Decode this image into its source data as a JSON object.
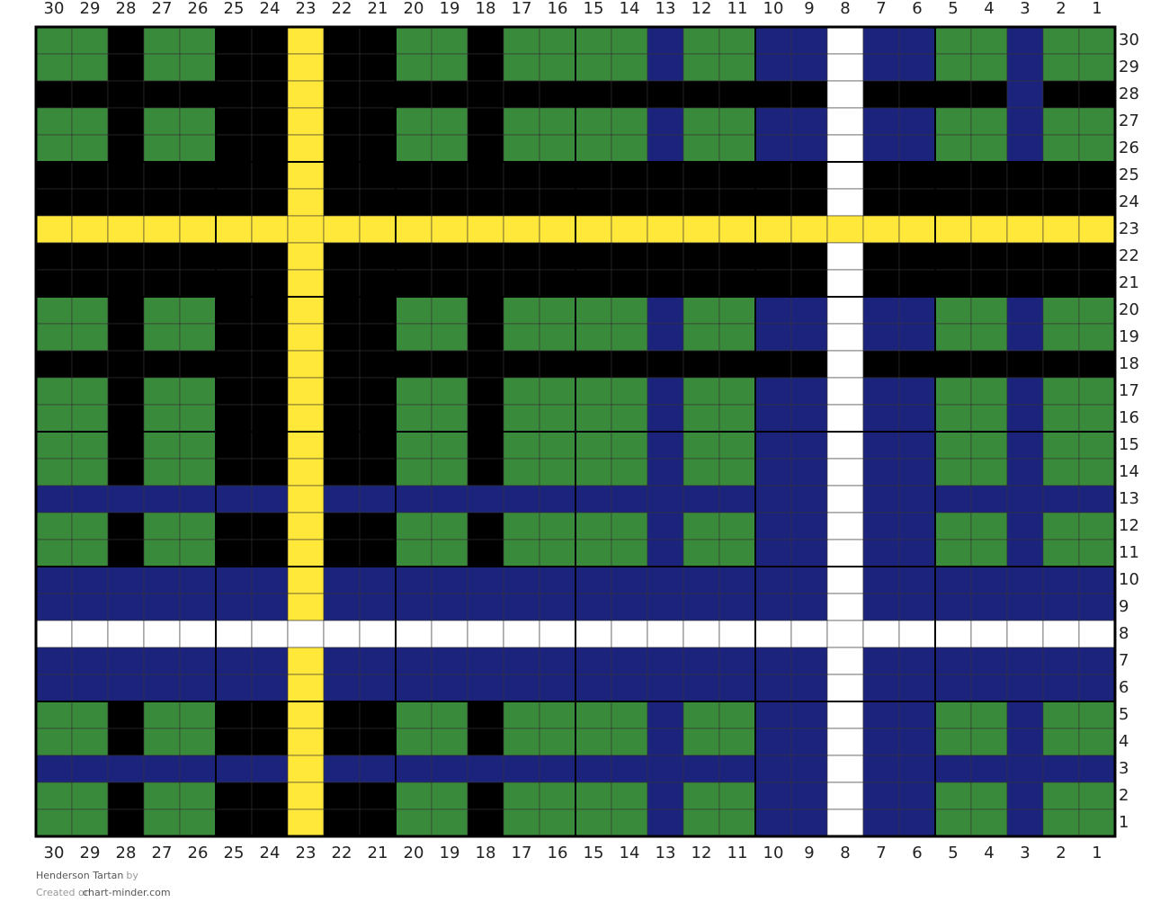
{
  "pattern": {
    "title": "Henderson Tartan",
    "by": "by",
    "created": "Created on",
    "site": "chart-minder.com",
    "palette": {
      "G": "#3a8a3c",
      "K": "#000000",
      "Y": "#ffe83a",
      "B": "#1c237c",
      "W": "#ffffff"
    },
    "columns": [
      30,
      29,
      28,
      27,
      26,
      25,
      24,
      23,
      22,
      21,
      20,
      19,
      18,
      17,
      16,
      15,
      14,
      13,
      12,
      11,
      10,
      9,
      8,
      7,
      6,
      5,
      4,
      3,
      2,
      1
    ],
    "rows": [
      {
        "label": 30,
        "cells": "GGKGGKKYKKGGKGGGGBGGBBWBBGGBGG"
      },
      {
        "label": 29,
        "cells": "GGKGGKKYKKGGKGGGGBGGBBWBBGGBGG"
      },
      {
        "label": 28,
        "cells": "KKKKKKKYKKKKKKKKKKKKKKWKKKKBKK"
      },
      {
        "label": 27,
        "cells": "GGKGGKKYKKGGKGGGGBGGBBWBBGGBGG"
      },
      {
        "label": 26,
        "cells": "GGKGGKKYKKGGKGGGGBGGBBWBBGGBGG"
      },
      {
        "label": 25,
        "cells": "KKKKKKKYKKKKKKKKKKKKKKWKKKKKKK"
      },
      {
        "label": 24,
        "cells": "KKKKKKKYKKKKKKKKKKKKKKWKKKKKKK"
      },
      {
        "label": 23,
        "cells": "YYYYYYYYYYYYYYYYYYYYYYYYYYYYYY"
      },
      {
        "label": 22,
        "cells": "KKKKKKKYKKKKKKKKKKKKKKWKKKKKKK"
      },
      {
        "label": 21,
        "cells": "KKKKKKKYKKKKKKKKKKKKKKWKKKKKKK"
      },
      {
        "label": 20,
        "cells": "GGKGGKKYKKGGKGGGGBGGBBWBBGGBGG"
      },
      {
        "label": 19,
        "cells": "GGKGGKKYKKGGKGGGGBGGBBWBBGGBGG"
      },
      {
        "label": 18,
        "cells": "KKKKKKKYKKKKKKKKKKKKKKWKKKKKKK"
      },
      {
        "label": 17,
        "cells": "GGKGGKKYKKGGKGGGGBGGBBWBBGGBGG"
      },
      {
        "label": 16,
        "cells": "GGKGGKKYKKGGKGGGGBGGBBWBBGGBGG"
      },
      {
        "label": 15,
        "cells": "GGKGGKKYKKGGKGGGGBGGBBWBBGGBGG"
      },
      {
        "label": 14,
        "cells": "GGKGGKKYKKGGKGGGGBGGBBWBBGGBGG"
      },
      {
        "label": 13,
        "cells": "BBBBBBBYBBBBBBBBBBBBBBWBBBBBBB"
      },
      {
        "label": 12,
        "cells": "GGKGGKKYKKGGKGGGGBGGBBWBBGGBGG"
      },
      {
        "label": 11,
        "cells": "GGKGGKKYKKGGKGGGGBGGBBWBBGGBGG"
      },
      {
        "label": 10,
        "cells": "BBBBBBBYBBBBBBBBBBBBBBWBBBBBBB"
      },
      {
        "label": 9,
        "cells": "BBBBBBBYBBBBBBBBBBBBBBWBBBBBBB"
      },
      {
        "label": 8,
        "cells": "WWWWWWWWWWWWWWWWWWWWWWWWWWWWWW"
      },
      {
        "label": 7,
        "cells": "BBBBBBBYBBBBBBBBBBBBBBWBBBBBBB"
      },
      {
        "label": 6,
        "cells": "BBBBBBBYBBBBBBBBBBBBBBWBBBBBBB"
      },
      {
        "label": 5,
        "cells": "GGKGGKKYKKGGKGGGGBGGBBWBBGGBGG"
      },
      {
        "label": 4,
        "cells": "GGKGGKKYKKGGKGGGGBGGBBWBBGGBGG"
      },
      {
        "label": 3,
        "cells": "BBBBBBBYBBBBBBBBBBBBBBWBBBBBBB"
      },
      {
        "label": 2,
        "cells": "GGKGGKKYKKGGKGGGGBGGBBWBBGGBGG"
      },
      {
        "label": 1,
        "cells": "GGKGGKKYKKGGKGGGGBGGBBWBBGGBGG"
      }
    ]
  }
}
